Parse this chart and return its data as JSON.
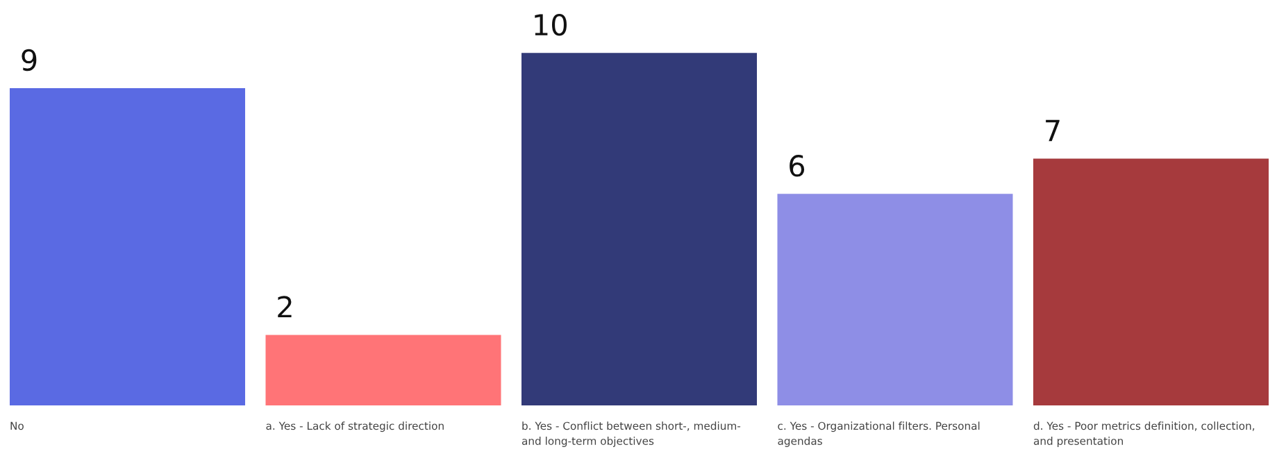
{
  "chart_data": {
    "type": "bar",
    "categories": [
      "No",
      "a. Yes - Lack of strategic direction",
      "b. Yes - Conflict between short-, medium- and long-term objectives",
      "c. Yes - Organizational filters. Personal agendas",
      "d. Yes - Poor metrics definition, collection, and presentation"
    ],
    "values": [
      9,
      2,
      10,
      6,
      7
    ],
    "colors": [
      "#5a6ae3",
      "#ff7477",
      "#323a78",
      "#8e8ee6",
      "#a63a3d"
    ],
    "data_labels": true
  }
}
